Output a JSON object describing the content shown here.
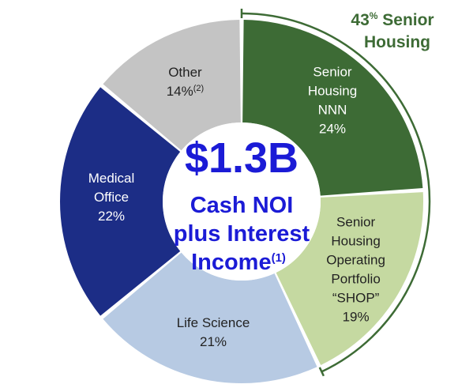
{
  "chart_data": {
    "type": "pie",
    "variant": "donut",
    "center": {
      "amount": "$1.3B",
      "lines": [
        "Cash NOI",
        "plus Interest",
        "Income"
      ],
      "footnote": "(1)"
    },
    "slices": [
      {
        "key": "shn",
        "lines": [
          "Senior",
          "Housing",
          "NNN"
        ],
        "value": 24,
        "value_label": "24%",
        "footnote": "",
        "color": "#3d6b35",
        "text_color": "#ffffff"
      },
      {
        "key": "shop",
        "lines": [
          "Senior",
          "Housing",
          "Operating",
          "Portfolio",
          "“SHOP”"
        ],
        "value": 19,
        "value_label": "19%",
        "footnote": "",
        "color": "#c5d9a1",
        "text_color": "#222222"
      },
      {
        "key": "life",
        "lines": [
          "Life Science"
        ],
        "value": 21,
        "value_label": "21%",
        "footnote": "",
        "color": "#b7cae3",
        "text_color": "#222222"
      },
      {
        "key": "mob",
        "lines": [
          "Medical",
          "Office"
        ],
        "value": 22,
        "value_label": "22%",
        "footnote": "",
        "color": "#1c2d86",
        "text_color": "#ffffff"
      },
      {
        "key": "other",
        "lines": [
          "Other"
        ],
        "value": 14,
        "value_label": "14%",
        "footnote": "(2)",
        "color": "#c4c4c4",
        "text_color": "#222222"
      }
    ],
    "callout": {
      "value": "43",
      "sup": "%",
      "line1_rest": " Senior",
      "line2": "Housing",
      "color": "#3d6b35"
    },
    "center_text_color": "#1b1bd6"
  }
}
